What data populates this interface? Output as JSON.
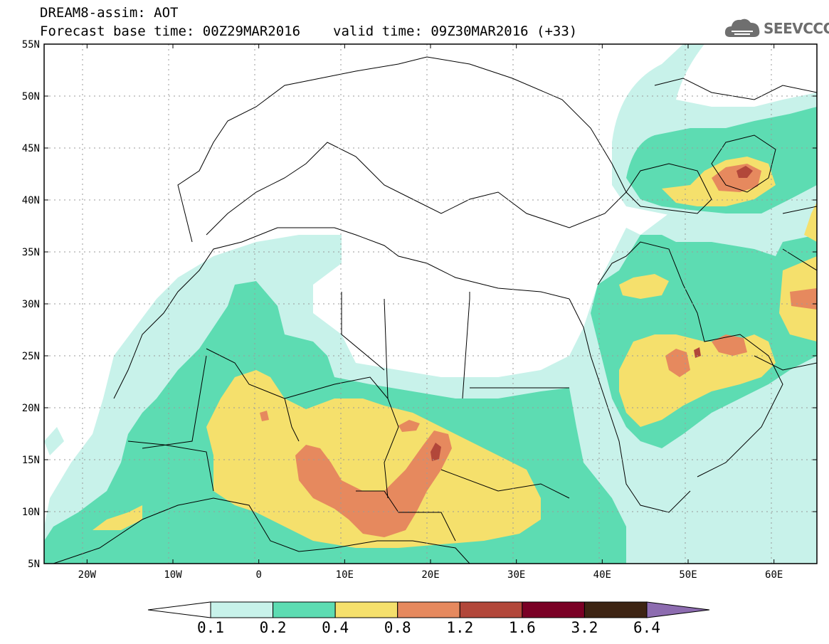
{
  "header": {
    "title_line1": "DREAM8-assim: AOT",
    "base_time": "Forecast base time: 00Z29MAR2016",
    "valid_time": "valid time: 09Z30MAR2016 (+33)"
  },
  "logo": {
    "text": "SEEVCCC",
    "icon": "cloud-icon"
  },
  "map": {
    "lat_range": [
      5,
      55
    ],
    "lon_range": [
      -25,
      65
    ],
    "lat_labels": [
      "55N",
      "50N",
      "45N",
      "40N",
      "35N",
      "30N",
      "25N",
      "20N",
      "15N",
      "10N",
      "5N"
    ],
    "lon_labels": [
      "20W",
      "10W",
      "0",
      "10E",
      "20E",
      "30E",
      "40E",
      "50E",
      "60E"
    ]
  },
  "colorbar": {
    "levels": [
      "0.1",
      "0.2",
      "0.4",
      "0.8",
      "1.2",
      "1.6",
      "3.2",
      "6.4"
    ],
    "colors": [
      "#ffffff",
      "#c8f2ea",
      "#5ddcb2",
      "#f5e06c",
      "#e6895e",
      "#b2473a",
      "#7a0025",
      "#3d2413",
      "#8d6cb0"
    ]
  }
}
